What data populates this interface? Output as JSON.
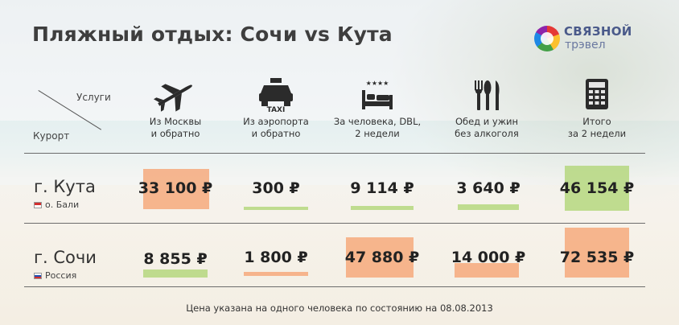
{
  "title": "Пляжный отдых: Сочи vs Кута",
  "logo": {
    "word": "СВЯЗНОЙ",
    "sub": "трэвел"
  },
  "header": {
    "services": "Услуги",
    "resort": "Курорт"
  },
  "columns": [
    {
      "icon": "airplane-icon",
      "label_1": "Из Москвы",
      "label_2": "и обратно"
    },
    {
      "icon": "taxi-icon",
      "icon_text": "TAXI",
      "label_1": "Из аэропорта",
      "label_2": "и обратно"
    },
    {
      "icon": "hotel-bed-icon",
      "icon_text": "★★★★",
      "label_1": "За человека, DBL,",
      "label_2": "2 недели"
    },
    {
      "icon": "cutlery-icon",
      "label_1": "Обед и ужин",
      "label_2": "без алкоголя"
    },
    {
      "icon": "calculator-icon",
      "label_1": "Итого",
      "label_2": "за 2 недели"
    }
  ],
  "rows": [
    {
      "name": "г. Кута",
      "sub": "о. Бали",
      "flag": "indonesia-flag-icon",
      "prices": [
        "33 100 ₽",
        "300 ₽",
        "9 114 ₽",
        "3 640 ₽",
        "46 154 ₽"
      ],
      "highlight": [
        "orange",
        "green",
        "green",
        "green",
        "green"
      ]
    },
    {
      "name": "г. Сочи",
      "sub": "Россия",
      "flag": "russia-flag-icon",
      "prices": [
        "8 855 ₽",
        "1 800 ₽",
        "47 880 ₽",
        "14 000 ₽",
        "72 535 ₽"
      ],
      "highlight": [
        "green",
        "orange",
        "orange",
        "orange",
        "orange"
      ]
    }
  ],
  "colors": {
    "orange": "#f6a06e",
    "green": "#b2d678",
    "text": "#333333"
  },
  "footnote": "Цена указана на одного человека по состоянию на 08.08.2013"
}
